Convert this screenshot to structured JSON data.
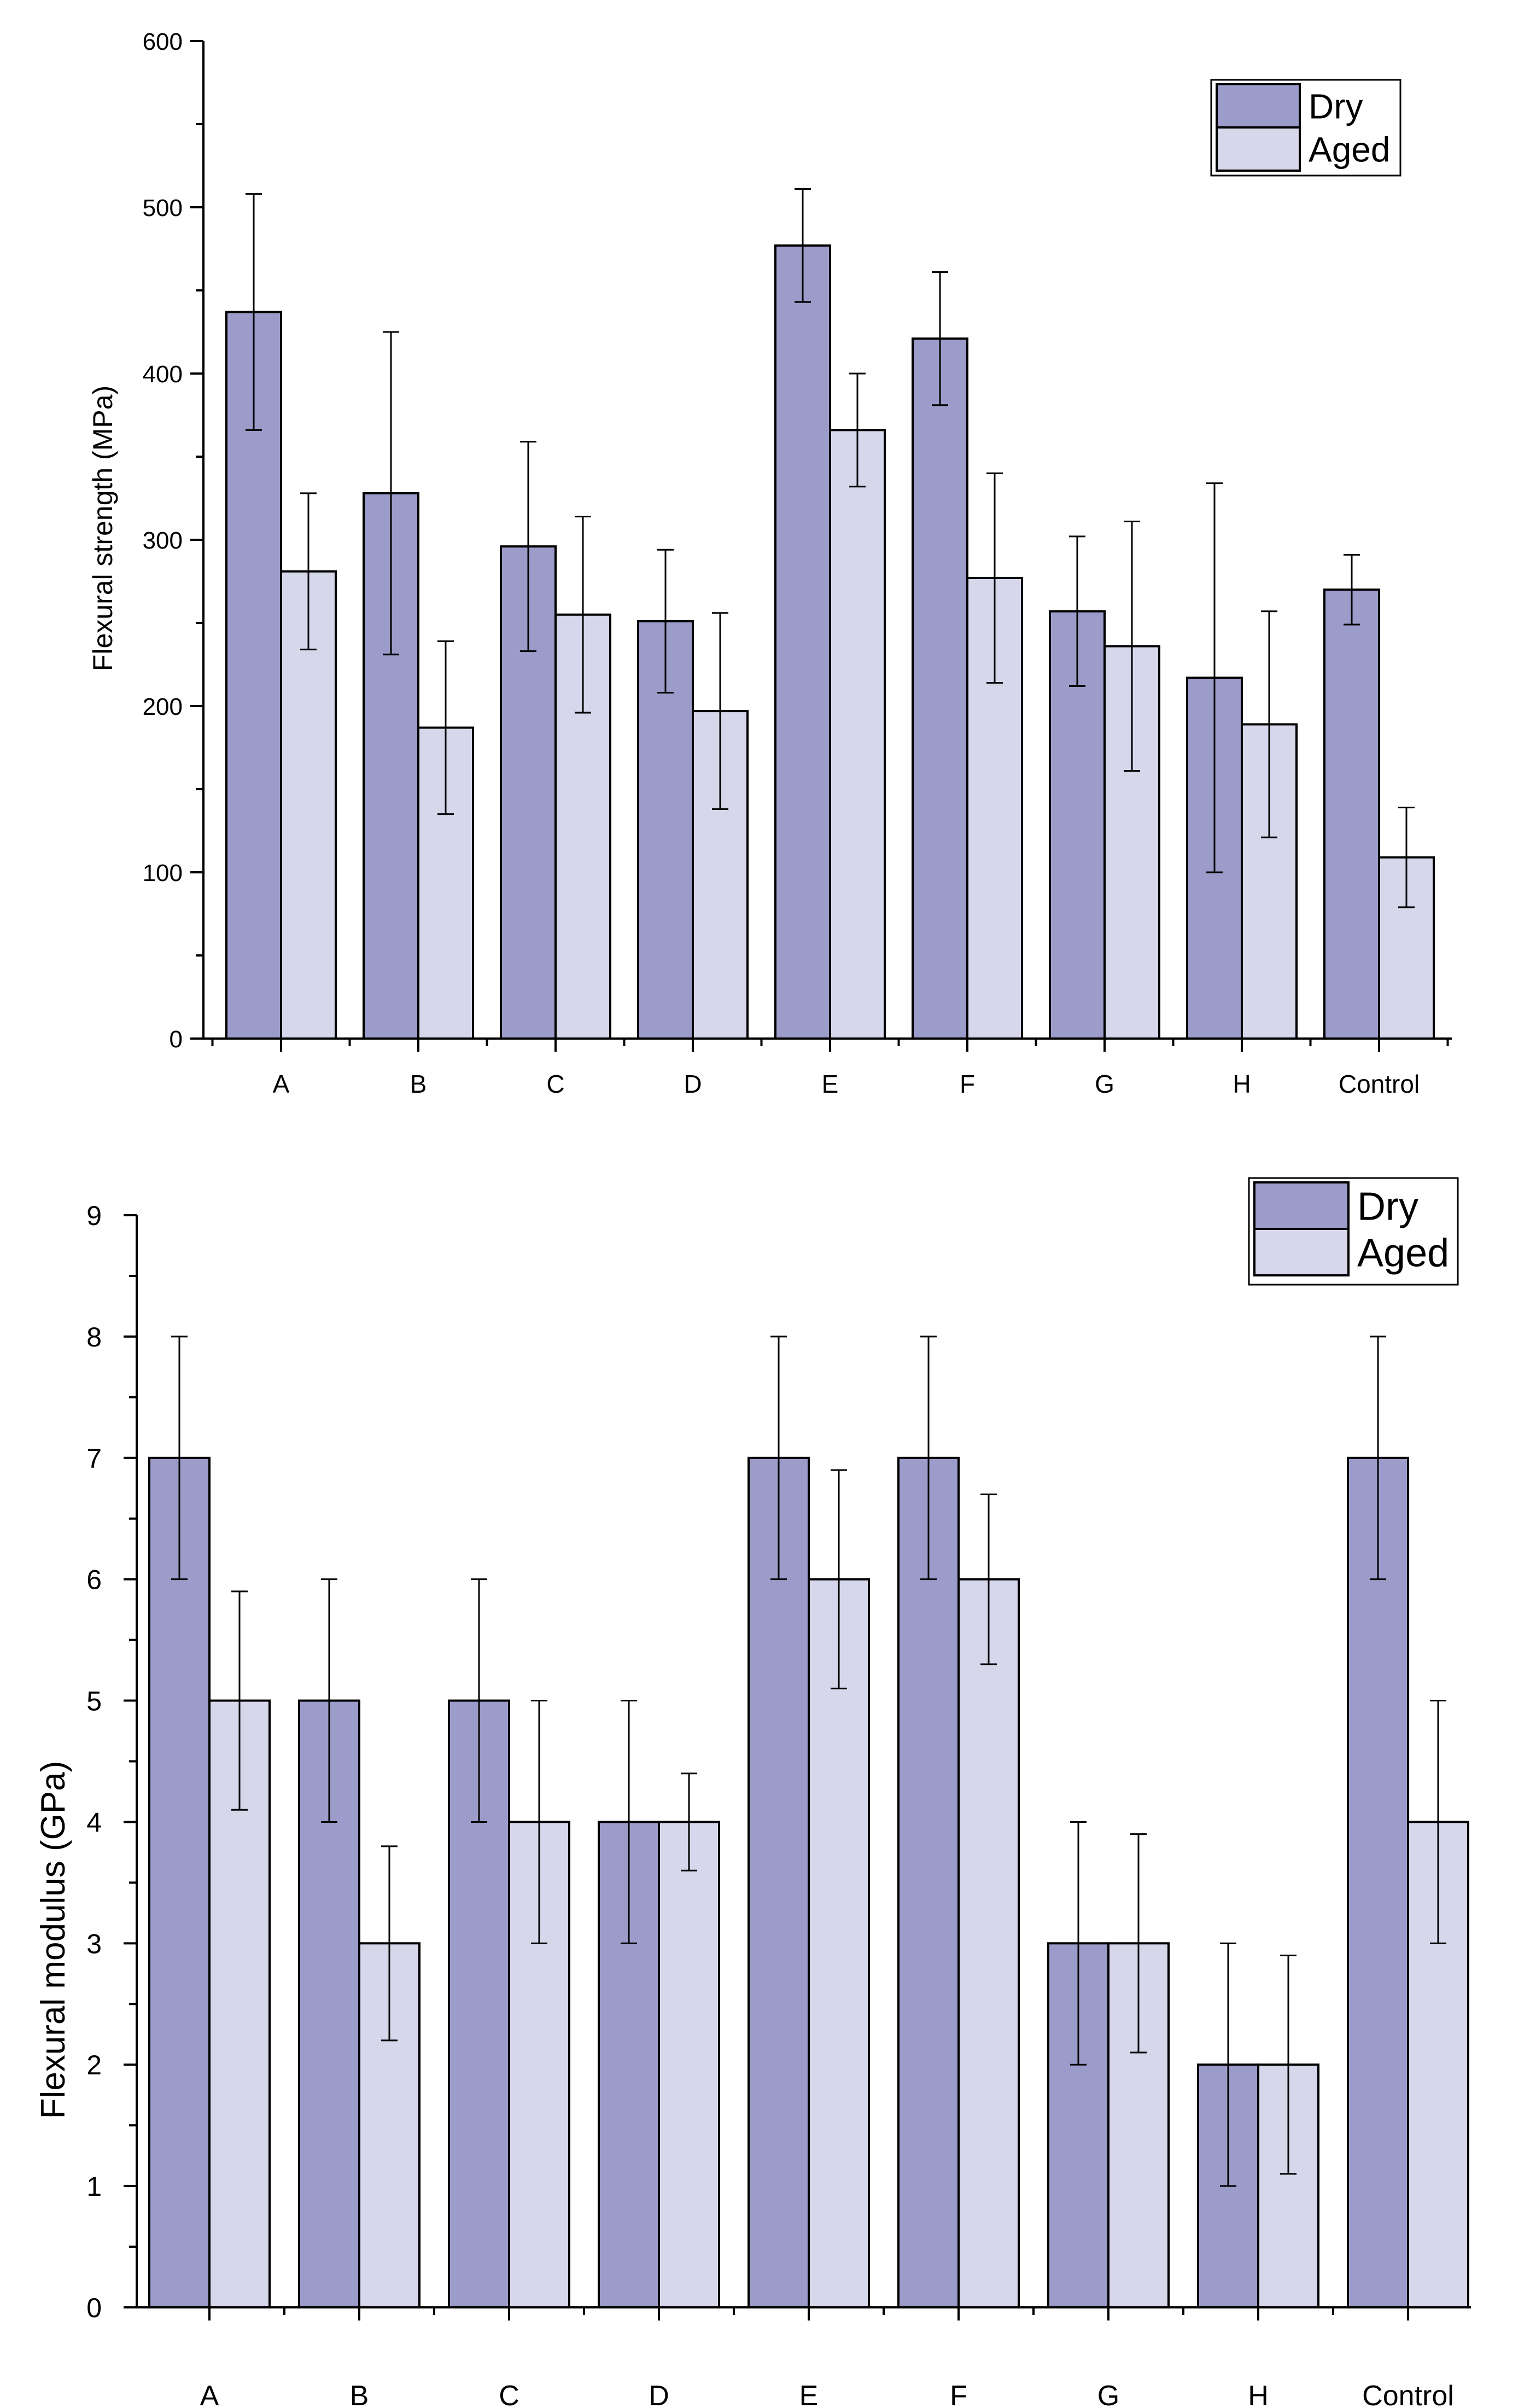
{
  "chart_data": [
    {
      "type": "bar",
      "title": "",
      "xlabel": "",
      "ylabel": "Flexural strength (MPa)",
      "ylim": [
        0,
        600
      ],
      "yticks": [
        "0",
        "100",
        "200",
        "300",
        "400",
        "500",
        "600"
      ],
      "ytick_values": [
        0,
        100,
        200,
        300,
        400,
        500,
        600
      ],
      "minor_tick_step": 50,
      "grid": false,
      "legend_position": "top-right",
      "categories": [
        "A",
        "B",
        "C",
        "D",
        "E",
        "F",
        "G",
        "H",
        "Control"
      ],
      "series": [
        {
          "name": "Dry",
          "color": "#9c9cca",
          "values": [
            437,
            328,
            296,
            251,
            477,
            421,
            257,
            217,
            270
          ],
          "errors": [
            71,
            97,
            63,
            43,
            34,
            40,
            45,
            117,
            21
          ]
        },
        {
          "name": "Aged",
          "color": "#d7d7ec",
          "values": [
            281,
            187,
            255,
            197,
            366,
            277,
            236,
            189,
            109
          ],
          "errors": [
            47,
            52,
            59,
            59,
            34,
            63,
            75,
            68,
            30
          ]
        }
      ]
    },
    {
      "type": "bar",
      "title": "",
      "xlabel": "",
      "ylabel": "Flexural modulus (GPa)",
      "ylim": [
        0,
        9
      ],
      "yticks": [
        "0",
        "1",
        "2",
        "3",
        "4",
        "5",
        "6",
        "7",
        "8",
        "9"
      ],
      "ytick_values": [
        0,
        1,
        2,
        3,
        4,
        5,
        6,
        7,
        8,
        9
      ],
      "minor_tick_step": 0.5,
      "grid": false,
      "legend_position": "top-right",
      "categories": [
        "A",
        "B",
        "C",
        "D",
        "E",
        "F",
        "G",
        "H",
        "Control"
      ],
      "series": [
        {
          "name": "Dry",
          "color": "#9c9cca",
          "values": [
            7,
            5,
            5,
            4,
            7,
            7,
            3,
            2,
            7
          ],
          "errors": [
            1,
            1,
            1,
            1,
            1,
            1,
            1,
            1,
            1
          ]
        },
        {
          "name": "Aged",
          "color": "#d7d7ec",
          "values": [
            5,
            3,
            4,
            4,
            6,
            6,
            3,
            2,
            4
          ],
          "errors": [
            0.9,
            0.8,
            1,
            0.4,
            0.9,
            0.7,
            0.9,
            0.9,
            1
          ]
        }
      ]
    }
  ]
}
